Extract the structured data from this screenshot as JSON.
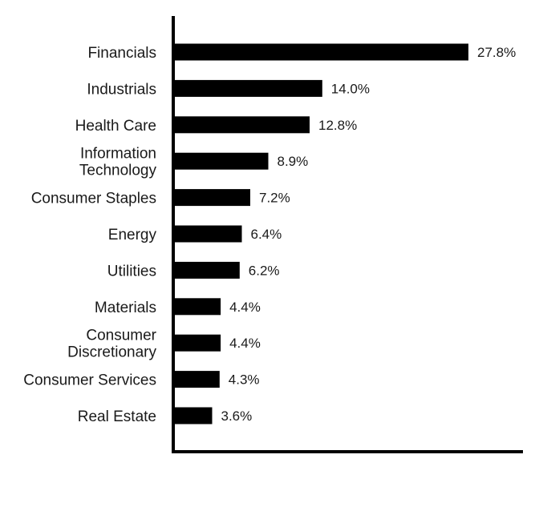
{
  "chart_data": {
    "type": "bar",
    "orientation": "horizontal",
    "categories": [
      "Financials",
      "Industrials",
      "Health Care",
      "Information Technology",
      "Consumer Staples",
      "Energy",
      "Utilities",
      "Materials",
      "Consumer Discretionary",
      "Consumer Services",
      "Real Estate"
    ],
    "category_lines": [
      [
        "Financials"
      ],
      [
        "Industrials"
      ],
      [
        "Health Care"
      ],
      [
        "Information",
        "Technology"
      ],
      [
        "Consumer Staples"
      ],
      [
        "Energy"
      ],
      [
        "Utilities"
      ],
      [
        "Materials"
      ],
      [
        "Consumer",
        "Discretionary"
      ],
      [
        "Consumer Services"
      ],
      [
        "Real Estate"
      ]
    ],
    "values": [
      27.8,
      14.0,
      12.8,
      8.9,
      7.2,
      6.4,
      6.2,
      4.4,
      4.4,
      4.3,
      3.6
    ],
    "value_labels": [
      "27.8%",
      "14.0%",
      "12.8%",
      "8.9%",
      "7.2%",
      "6.4%",
      "6.2%",
      "4.4%",
      "4.4%",
      "4.3%",
      "3.6%"
    ],
    "title": "",
    "xlabel": "",
    "ylabel": "",
    "xlim": [
      0,
      33
    ],
    "grid": false,
    "legend": "none",
    "bar_color": "#000000",
    "axis_color": "#000000"
  }
}
